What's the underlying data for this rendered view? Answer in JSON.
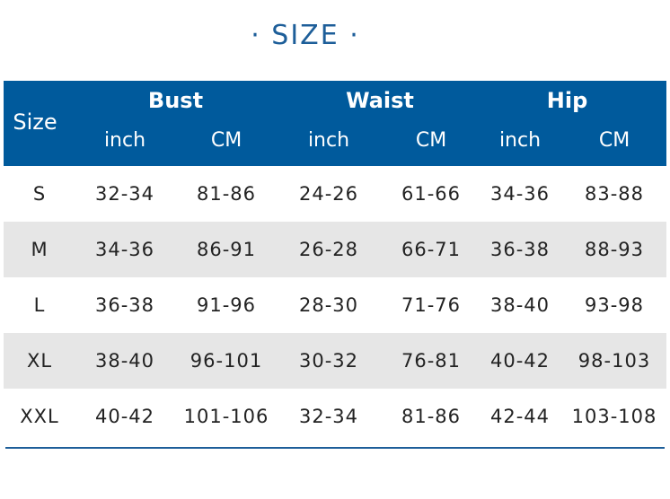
{
  "header": {
    "title": "· SIZE ·"
  },
  "table": {
    "size_label": "Size",
    "groups": [
      "Bust",
      "Waist",
      "Hip"
    ],
    "units": [
      "inch",
      "CM",
      "inch",
      "CM",
      "inch",
      "CM"
    ],
    "rows": [
      [
        "S",
        "32-34",
        "81-86",
        "24-26",
        "61-66",
        "34-36",
        "83-88"
      ],
      [
        "M",
        "34-36",
        "86-91",
        "26-28",
        "66-71",
        "36-38",
        "88-93"
      ],
      [
        "L",
        "36-38",
        "91-96",
        "28-30",
        "71-76",
        "38-40",
        "93-98"
      ],
      [
        "XL",
        "38-40",
        "96-101",
        "30-32",
        "76-81",
        "40-42",
        "98-103"
      ],
      [
        "XXL",
        "40-42",
        "101-106",
        "32-34",
        "81-86",
        "42-44",
        "103-108"
      ]
    ]
  }
}
